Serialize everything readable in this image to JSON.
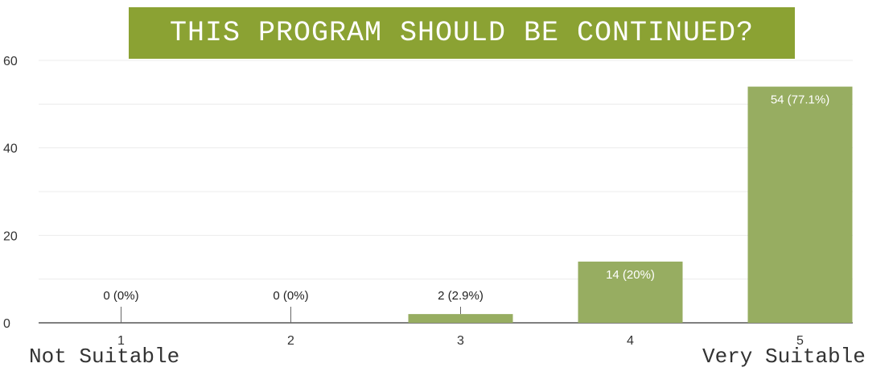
{
  "chart_data": {
    "type": "bar",
    "title": "THIS PROGRAM SHOULD BE CONTINUED?",
    "categories": [
      "1",
      "2",
      "3",
      "4",
      "5"
    ],
    "values": [
      0,
      0,
      2,
      14,
      54
    ],
    "data_labels": [
      "0 (0%)",
      "0 (0%)",
      "2 (2.9%)",
      "14 (20%)",
      "54 (77.1%)"
    ],
    "ylim": [
      0,
      60
    ],
    "yticks": [
      0,
      20,
      40,
      60
    ],
    "grid": true,
    "xlabel": "",
    "ylabel": ""
  },
  "scale_labels": {
    "low": "Not Suitable",
    "high": "Very Suitable"
  },
  "colors": {
    "title_background": "#8ba233",
    "bar": "#97ad61",
    "grid": "#ececec",
    "axis": "#555555"
  }
}
